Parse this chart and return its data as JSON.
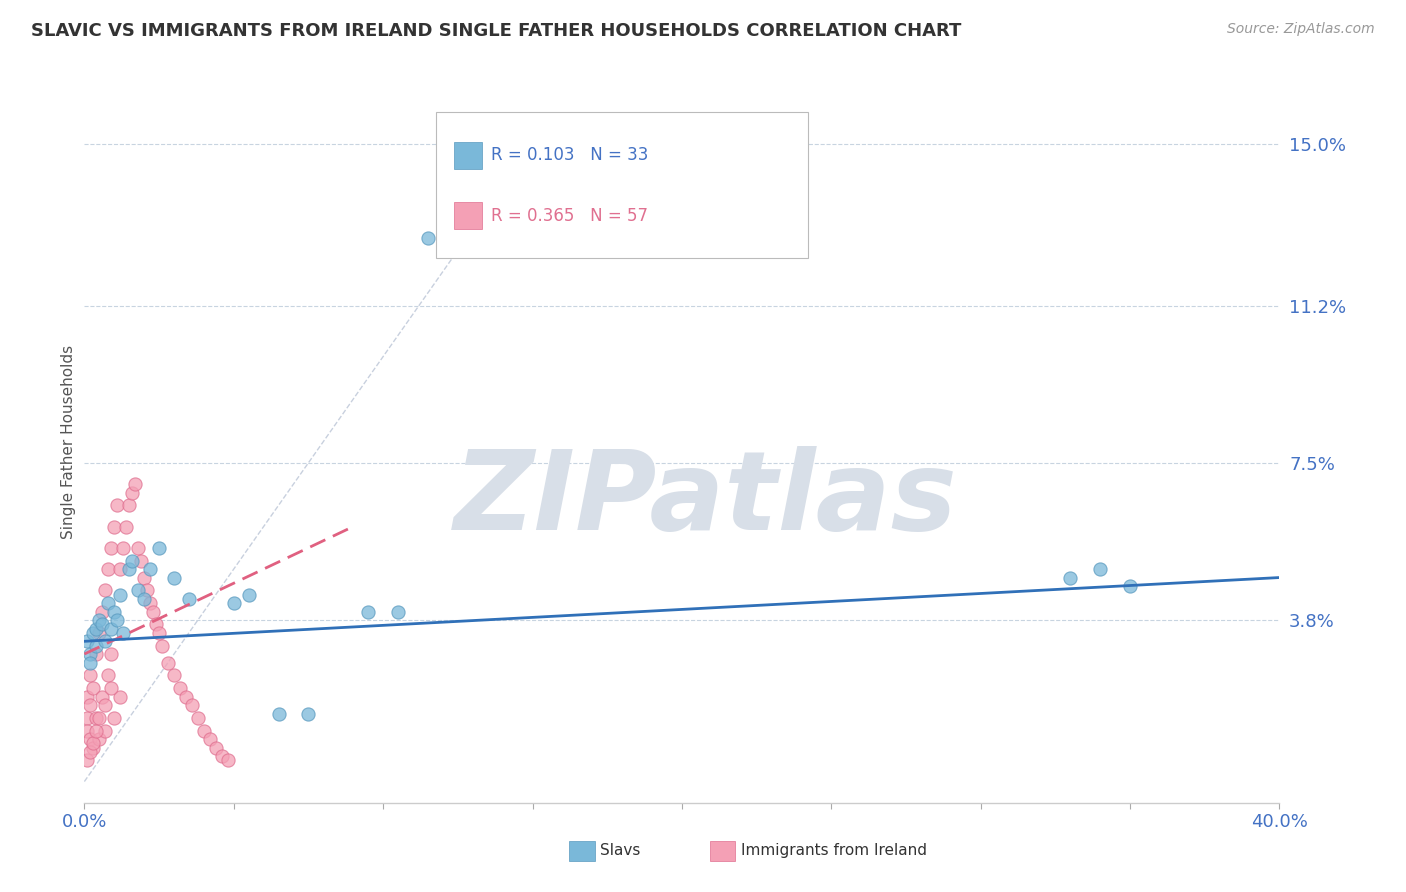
{
  "title": "SLAVIC VS IMMIGRANTS FROM IRELAND SINGLE FATHER HOUSEHOLDS CORRELATION CHART",
  "source": "Source: ZipAtlas.com",
  "ylabel": "Single Father Households",
  "xlim": [
    0.0,
    0.4
  ],
  "ylim": [
    -0.005,
    0.165
  ],
  "yticks": [
    0.038,
    0.075,
    0.112,
    0.15
  ],
  "ytick_labels": [
    "3.8%",
    "7.5%",
    "11.2%",
    "15.0%"
  ],
  "xtick_left_label": "0.0%",
  "xtick_right_label": "40.0%",
  "legend_r1": "R = 0.103",
  "legend_n1": "N = 33",
  "legend_r2": "R = 0.365",
  "legend_n2": "N = 57",
  "slavs_color": "#7ab8d9",
  "ireland_color": "#f4a0b5",
  "slavs_edge_color": "#5a9abf",
  "ireland_edge_color": "#e07090",
  "trendline_slavs_color": "#3070b8",
  "trendline_ireland_color": "#e06080",
  "trendline_ireland_dash": [
    6,
    3
  ],
  "diagonal_color": "#c8d0de",
  "watermark": "ZIPatlas",
  "watermark_color": "#d8dfe8",
  "background_color": "#ffffff",
  "grid_color": "#c8d4e0",
  "slavs_x": [
    0.001,
    0.002,
    0.002,
    0.003,
    0.004,
    0.004,
    0.005,
    0.006,
    0.007,
    0.008,
    0.009,
    0.01,
    0.011,
    0.012,
    0.013,
    0.015,
    0.016,
    0.018,
    0.02,
    0.022,
    0.025,
    0.03,
    0.035,
    0.05,
    0.055,
    0.115,
    0.33,
    0.34,
    0.35,
    0.065,
    0.075,
    0.095,
    0.105
  ],
  "slavs_y": [
    0.033,
    0.03,
    0.028,
    0.035,
    0.036,
    0.032,
    0.038,
    0.037,
    0.033,
    0.042,
    0.036,
    0.04,
    0.038,
    0.044,
    0.035,
    0.05,
    0.052,
    0.045,
    0.043,
    0.05,
    0.055,
    0.048,
    0.043,
    0.042,
    0.044,
    0.128,
    0.048,
    0.05,
    0.046,
    0.016,
    0.016,
    0.04,
    0.04
  ],
  "ireland_x": [
    0.001,
    0.001,
    0.001,
    0.002,
    0.002,
    0.002,
    0.003,
    0.003,
    0.004,
    0.004,
    0.005,
    0.005,
    0.006,
    0.006,
    0.007,
    0.007,
    0.008,
    0.008,
    0.009,
    0.009,
    0.01,
    0.01,
    0.011,
    0.012,
    0.012,
    0.013,
    0.014,
    0.015,
    0.016,
    0.017,
    0.018,
    0.019,
    0.02,
    0.021,
    0.022,
    0.023,
    0.024,
    0.025,
    0.026,
    0.028,
    0.03,
    0.032,
    0.034,
    0.036,
    0.038,
    0.04,
    0.042,
    0.044,
    0.046,
    0.048,
    0.001,
    0.002,
    0.003,
    0.004,
    0.005,
    0.007,
    0.009
  ],
  "ireland_y": [
    0.015,
    0.02,
    0.012,
    0.025,
    0.018,
    0.01,
    0.022,
    0.008,
    0.03,
    0.015,
    0.035,
    0.01,
    0.04,
    0.02,
    0.045,
    0.012,
    0.05,
    0.025,
    0.055,
    0.03,
    0.06,
    0.015,
    0.065,
    0.05,
    0.02,
    0.055,
    0.06,
    0.065,
    0.068,
    0.07,
    0.055,
    0.052,
    0.048,
    0.045,
    0.042,
    0.04,
    0.037,
    0.035,
    0.032,
    0.028,
    0.025,
    0.022,
    0.02,
    0.018,
    0.015,
    0.012,
    0.01,
    0.008,
    0.006,
    0.005,
    0.005,
    0.007,
    0.009,
    0.012,
    0.015,
    0.018,
    0.022
  ],
  "slavs_trendline_x0": 0.0,
  "slavs_trendline_x1": 0.4,
  "slavs_trendline_y0": 0.033,
  "slavs_trendline_y1": 0.048,
  "ireland_trendline_x0": 0.0,
  "ireland_trendline_x1": 0.09,
  "ireland_trendline_y0": 0.03,
  "ireland_trendline_y1": 0.06
}
